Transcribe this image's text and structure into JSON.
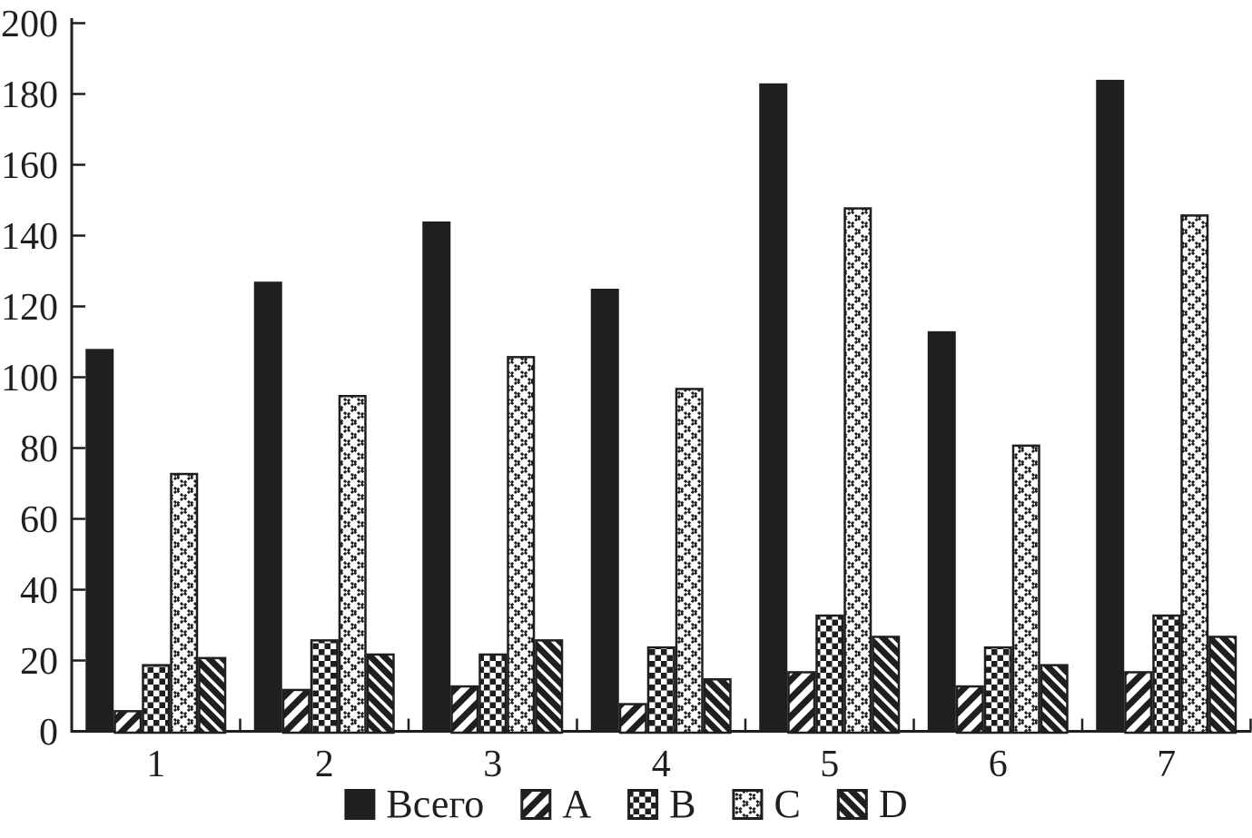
{
  "figure": {
    "background": "#ffffff",
    "ink_color": "#211e1e",
    "title": ""
  },
  "chart_data": {
    "type": "bar",
    "title": "",
    "xlabel": "",
    "ylabel": "",
    "categories": [
      "1",
      "2",
      "3",
      "4",
      "5",
      "6",
      "7"
    ],
    "series": [
      {
        "name": "Всего",
        "pattern": "solid",
        "values": [
          108,
          127,
          144,
          125,
          183,
          113,
          184
        ]
      },
      {
        "name": "A",
        "pattern": "diagonal-up",
        "values": [
          6,
          12,
          13,
          8,
          17,
          13,
          17
        ]
      },
      {
        "name": "B",
        "pattern": "checkerboard",
        "values": [
          19,
          26,
          22,
          24,
          33,
          24,
          33
        ]
      },
      {
        "name": "C",
        "pattern": "diamond-lattice",
        "values": [
          73,
          95,
          106,
          97,
          148,
          81,
          146
        ]
      },
      {
        "name": "D",
        "pattern": "diagonal-down",
        "values": [
          21,
          22,
          26,
          15,
          27,
          19,
          27
        ]
      }
    ],
    "ylim": [
      0,
      200
    ],
    "ytick_step": 20,
    "yticks": [
      0,
      20,
      40,
      60,
      80,
      100,
      120,
      140,
      160,
      180,
      200
    ],
    "grid": false,
    "legend_position": "bottom"
  }
}
